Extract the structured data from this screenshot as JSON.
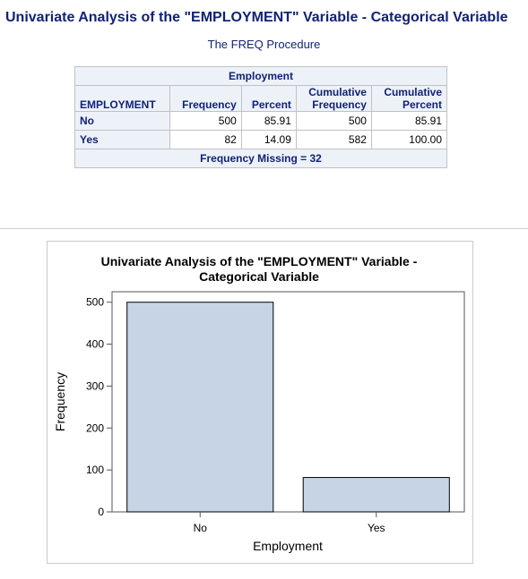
{
  "page": {
    "title": "Univariate Analysis of the \"EMPLOYMENT\" Variable - Categorical Variable",
    "procedure_title": "The FREQ Procedure"
  },
  "table": {
    "spanning_header": "Employment",
    "columns": {
      "var": "EMPLOYMENT",
      "frequency": "Frequency",
      "percent": "Percent",
      "cum_freq_1": "Cumulative",
      "cum_freq_2": "Frequency",
      "cum_pct_1": "Cumulative",
      "cum_pct_2": "Percent"
    },
    "rows": [
      {
        "label": "No",
        "frequency": "500",
        "percent": "85.91",
        "cum_freq": "500",
        "cum_pct": "85.91"
      },
      {
        "label": "Yes",
        "frequency": "82",
        "percent": "14.09",
        "cum_freq": "582",
        "cum_pct": "100.00"
      }
    ],
    "footer": "Frequency Missing = 32"
  },
  "chart_data": {
    "type": "bar",
    "title_line1": "Univariate Analysis of the \"EMPLOYMENT\" Variable -",
    "title_line2": "Categorical Variable",
    "categories": [
      "No",
      "Yes"
    ],
    "values": [
      500,
      82
    ],
    "xlabel": "Employment",
    "ylabel": "Frequency",
    "ylim": [
      0,
      525
    ],
    "yticks": [
      0,
      100,
      200,
      300,
      400,
      500
    ],
    "grid": false,
    "legend": "none",
    "bar_color": "#c6d4e6",
    "bar_outline": "#000000"
  }
}
